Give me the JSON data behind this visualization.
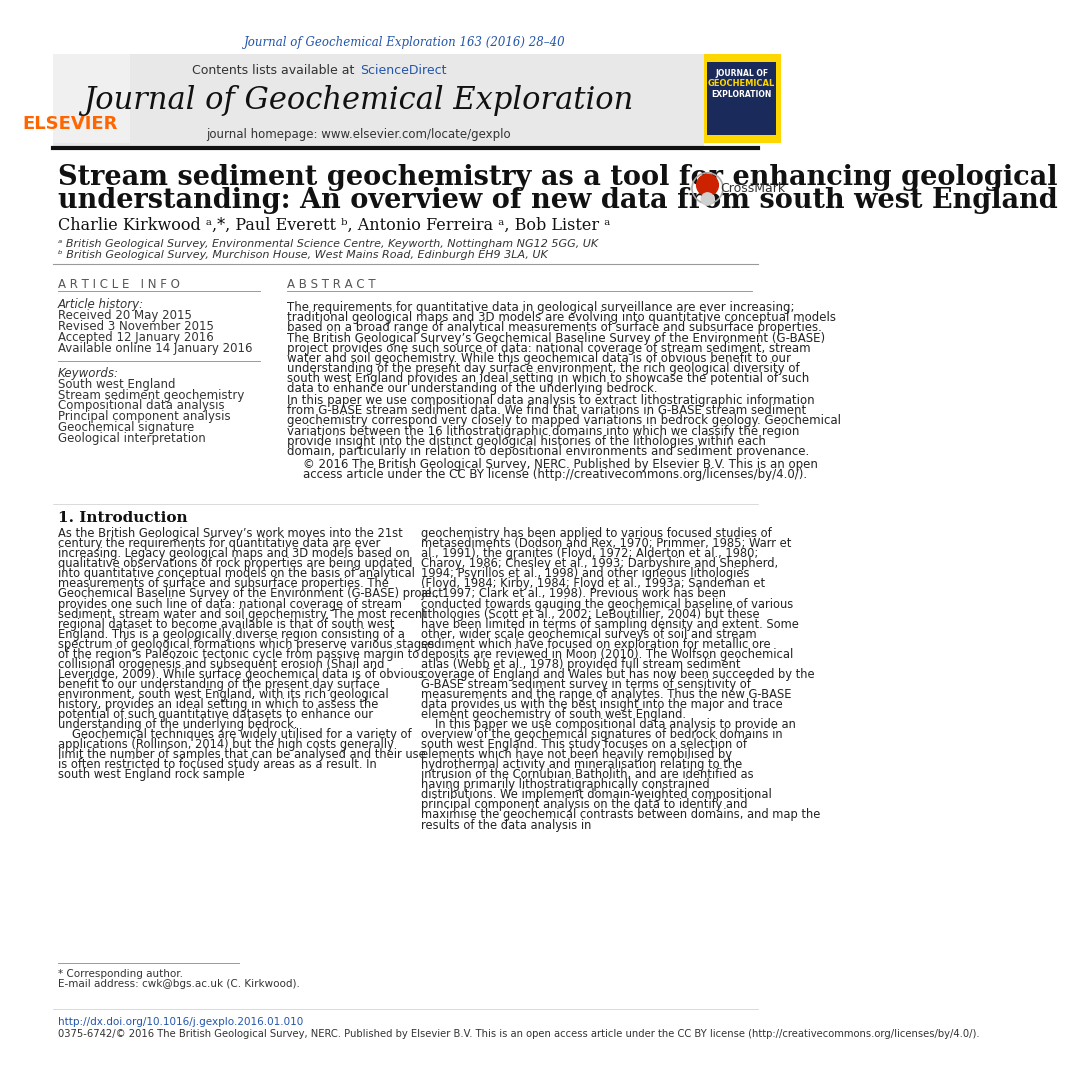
{
  "page_bg": "#ffffff",
  "journal_ref": "Journal of Geochemical Exploration 163 (2016) 28–40",
  "journal_ref_color": "#2255aa",
  "header_bg": "#e8e8e8",
  "header_text1": "Contents lists available at ",
  "header_link1": "ScienceDirect",
  "header_link_color": "#2255aa",
  "journal_name": "Journal of Geochemical Exploration",
  "journal_homepage_label": "journal homepage: ",
  "journal_homepage_url": "www.elsevier.com/locate/gexplo",
  "elsevier_color": "#ff6600",
  "divider_color": "#111111",
  "paper_title_line1": "Stream sediment geochemistry as a tool for enhancing geological",
  "paper_title_line2": "understanding: An overview of new data from south west England",
  "authors": "Charlie Kirkwood ᵃ,*, Paul Everett ᵇ, Antonio Ferreira ᵃ, Bob Lister ᵃ",
  "affil_a": "ᵃ British Geological Survey, Environmental Science Centre, Keyworth, Nottingham NG12 5GG, UK",
  "affil_b": "ᵇ British Geological Survey, Murchison House, West Mains Road, Edinburgh EH9 3LA, UK",
  "article_info_header": "A R T I C L E   I N F O",
  "abstract_header": "A B S T R A C T",
  "article_history_label": "Article history:",
  "received": "Received 20 May 2015",
  "revised": "Revised 3 November 2015",
  "accepted": "Accepted 12 January 2016",
  "available": "Available online 14 January 2016",
  "keywords_label": "Keywords:",
  "keywords": [
    "South west England",
    "Stream sediment geochemistry",
    "Compositional data analysis",
    "Principal component analysis",
    "Geochemical signature",
    "Geological interpretation"
  ],
  "abstract_text1": "The requirements for quantitative data in geological surveillance are ever increasing; traditional geological maps and 3D models are evolving into quantitative conceptual models based on a broad range of analytical measurements of surface and subsurface properties. The British Geological Survey’s Geochemical Baseline Survey of the Environment (G-BASE) project provides one such source of data: national coverage of stream sediment, stream water and soil geochemistry. While this geochemical data is of obvious benefit to our understanding of the present day surface environment, the rich geological diversity of south west England provides an ideal setting in which to showcase the potential of such data to enhance our understanding of the underlying bedrock.",
  "abstract_text2": "In this paper we use compositional data analysis to extract lithostratigraphic information from G-BASE stream sediment data. We find that variations in G-BASE stream sediment geochemistry correspond very closely to mapped variations in bedrock geology. Geochemical variations between the 16 lithostratigraphic domains into which we classify the region provide insight into the distinct geological histories of the lithologies within each domain, particularly in relation to depositional environments and sediment provenance.",
  "abstract_copyright": "© 2016 The British Geological Survey, NERC. Published by Elsevier B.V. This is an open access article under the CC BY license (http://creativecommons.org/licenses/by/4.0/).",
  "intro_header": "1. Introduction",
  "intro_col1": "As the British Geological Survey’s work moves into the 21st century the requirements for quantitative data are ever increasing. Legacy geological maps and 3D models based on qualitative observations of rock properties are being updated into quantitative conceptual models on the basis of analytical measurements of surface and subsurface properties. The Geochemical Baseline Survey of the Environment (G-BASE) project provides one such line of data: national coverage of stream sediment, stream water and soil geochemistry. The most recent regional dataset to become available is that of south west England. This is a geologically diverse region consisting of a spectrum of geological formations which preserve various stages of the region’s Paleozoic tectonic cycle from passive margin to collisional orogenesis and subsequent erosion (Shail and Leveridge, 2009). While surface geochemical data is of obvious benefit to our understanding of the present day surface environment, south west England, with its rich geological history, provides an ideal setting in which to assess the potential of such quantitative datasets to enhance our understanding of the underlying bedrock.\n    Geochemical techniques are widely utilised for a variety of applications (Rollinson, 2014) but the high costs generally limit the number of samples that can be analysed and their use is often restricted to focused study areas as a result. In south west England rock sample",
  "intro_col2": "geochemistry has been applied to various focused studies of metasediments (Dodson and Rex, 1970; Primmer, 1985; Warr et al., 1991), the granites (Floyd, 1972; Alderton et al., 1980; Charoy, 1986; Chesley et al., 1993; Darbyshire and Shepherd, 1994; Psyrillos et al., 1998) and other igneous lithologies (Floyd, 1984; Kirby, 1984; Floyd et al., 1993a; Sandeman et al., 1997; Clark et al., 1998). Previous work has been conducted towards gauging the geochemical baseline of various lithologies (Scott et al., 2002; LeBoutillier, 2004) but these have been limited in terms of sampling density and extent. Some other, wider scale geochemical surveys of soil and stream sediment which have focused on exploration for metallic ore deposits are reviewed in Moon (2010). The Wolfson geochemical atlas (Webb et al., 1978) provided full stream sediment coverage of England and Wales but has now been succeeded by the G-BASE stream sediment survey in terms of sensitivity of measurements and the range of analytes. Thus the new G-BASE data provides us with the best insight into the major and trace element geochemistry of south west England.\n    In this paper we use compositional data analysis to provide an overview of the geochemical signatures of bedrock domains in south west England. This study focuses on a selection of elements which have not been heavily remobilised by hydrothermal activity and mineralisation relating to the intrusion of the Cornubian Batholith, and are identified as having primarily lithostratigraphically constrained distributions. We implement domain-weighted compositional principal component analysis on the data to identify and maximise the geochemical contrasts between domains, and map the results of the data analysis in",
  "footnote_corresponding": "* Corresponding author.",
  "footnote_email": "E-mail address: cwk@bgs.ac.uk (C. Kirkwood).",
  "doi_text": "http://dx.doi.org/10.1016/j.gexplo.2016.01.010",
  "doi_text_color": "#2255aa",
  "footer_text": "0375-6742/© 2016 The British Geological Survey, NERC. Published by Elsevier B.V. This is an open access article under the CC BY license (http://creativecommons.org/licenses/by/4.0/).",
  "footer_link_color": "#2255aa"
}
